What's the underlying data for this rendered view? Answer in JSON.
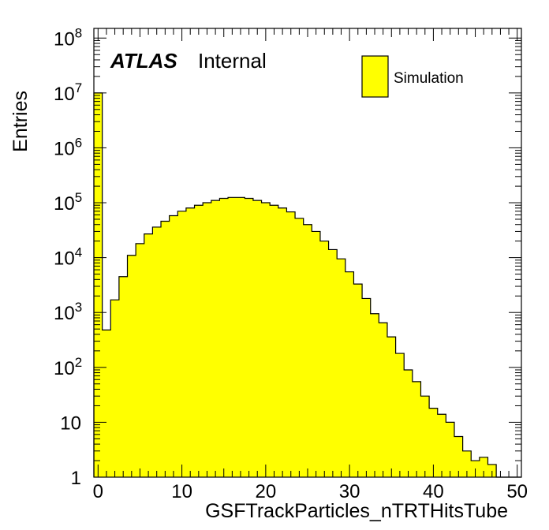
{
  "chart_data": {
    "type": "bar",
    "histogram": true,
    "xlabel": "GSFTrackParticles_nTRTHitsTube",
    "ylabel": "Entries",
    "label": "ATLAS",
    "label_suffix": "Internal",
    "xlim": [
      -0.5,
      50.5
    ],
    "ylim": [
      1,
      150000000
    ],
    "ylog": true,
    "grid": false,
    "legend_position": "top-right",
    "x_ticks": [
      "0",
      "10",
      "20",
      "30",
      "40",
      "50"
    ],
    "y_ticks": [
      {
        "base": "1",
        "exp": ""
      },
      {
        "base": "10",
        "exp": ""
      },
      {
        "base": "10",
        "exp": "2"
      },
      {
        "base": "10",
        "exp": "3"
      },
      {
        "base": "10",
        "exp": "4"
      },
      {
        "base": "10",
        "exp": "5"
      },
      {
        "base": "10",
        "exp": "6"
      },
      {
        "base": "10",
        "exp": "7"
      },
      {
        "base": "10",
        "exp": "8"
      }
    ],
    "fill_color": "#ffff00",
    "line_color": "#000000",
    "series": [
      {
        "name": "Simulation",
        "bin_width": 1,
        "x": [
          0,
          1,
          2,
          3,
          4,
          5,
          6,
          7,
          8,
          9,
          10,
          11,
          12,
          13,
          14,
          15,
          16,
          17,
          18,
          19,
          20,
          21,
          22,
          23,
          24,
          25,
          26,
          27,
          28,
          29,
          30,
          31,
          32,
          33,
          34,
          35,
          36,
          37,
          38,
          39,
          40,
          41,
          42,
          43,
          44,
          45,
          46,
          47,
          48,
          49,
          50
        ],
        "values": [
          10000000,
          480,
          1700,
          4500,
          11000,
          18000,
          27000,
          36000,
          46000,
          58000,
          70000,
          80000,
          90000,
          100000,
          110000,
          120000,
          125000,
          125000,
          120000,
          110000,
          100000,
          90000,
          80000,
          68000,
          52000,
          40000,
          30000,
          20000,
          14000,
          9500,
          5500,
          3300,
          1800,
          950,
          650,
          360,
          180,
          90,
          55,
          30,
          18,
          14,
          10,
          5.5,
          3,
          2,
          2.3,
          1.7,
          0,
          0,
          0
        ]
      }
    ]
  }
}
